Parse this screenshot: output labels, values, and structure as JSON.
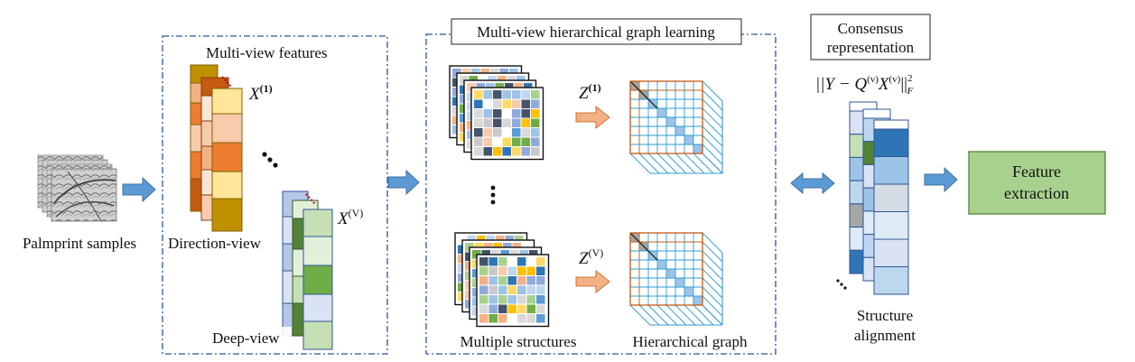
{
  "labels": {
    "palmprint_samples": "Palmprint samples",
    "multi_view_features": "Multi-view features",
    "direction_view": "Direction-view",
    "deep_view": "Deep-view",
    "hierarchical_learning_title": "Multi-view hierarchical graph learning",
    "multiple_structures": "Multiple structures",
    "hierarchical_graph": "Hierarchical graph",
    "consensus_line1": "Consensus",
    "consensus_line2": "representation",
    "structure_line1": "Structure",
    "structure_line2": "alignment",
    "feature_line1": "Feature",
    "feature_line2": "extraction"
  },
  "math": {
    "x1_base": "X",
    "x1_sup": "(1)",
    "xv_base": "X",
    "xv_sup": "(V)",
    "z1_base": "Z",
    "z1_sup": "(1)",
    "zv_base": "Z",
    "zv_sup": "(V)",
    "objective_lhs": "||Y − Q",
    "objective_q_sup": "(v)",
    "objective_x": "X",
    "objective_x_sup": "(v)",
    "objective_rhs": "||",
    "objective_norm_sub": "F",
    "objective_norm_sup": "2"
  },
  "colors": {
    "arrow_fill": "#5b9bd5",
    "arrow_stroke": "#41719c",
    "peach_arrow": "#f4b183",
    "feature_box_fill": "#a9d18e",
    "feature_box_stroke": "#548235",
    "dashed_frame": "#2f5597",
    "direction_palette": [
      "#f8cbad",
      "#fbe5d6",
      "#f4b183",
      "#ed7d31",
      "#ffe699",
      "#bf9000",
      "#c55a11"
    ],
    "deep_palette": [
      "#e2f0d9",
      "#c5e0b4",
      "#a9d18e",
      "#70ad47",
      "#548235",
      "#dae3f3",
      "#b4c7e7"
    ],
    "matrix_palette": [
      "#2e75b6",
      "#9dc3e6",
      "#bdd7ee",
      "#f4b183",
      "#a9d18e",
      "#ffd966",
      "#d9d9d9",
      "#8faadc",
      "#f8cbad",
      "#ffffff",
      "#ffc000",
      "#70ad47",
      "#5b9bd5",
      "#44546a",
      "#c9c9c9"
    ],
    "graph_grid": "#2e9bd6",
    "graph_border": "#c55a11",
    "consensus_palette": [
      "#2e75b6",
      "#9dc3e6",
      "#bdd7ee",
      "#dae3f3",
      "#deebf7",
      "#8faadc"
    ]
  },
  "icons": [
    "right-arrow-icon",
    "double-arrow-icon",
    "ellipsis-icon"
  ]
}
